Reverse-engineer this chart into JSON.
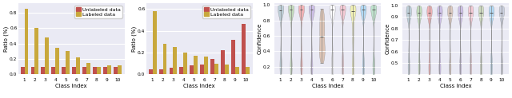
{
  "subplot_a": {
    "xlabel": "Class Index",
    "ylabel": "Ratio (%)",
    "unlabeled": [
      0.1,
      0.1,
      0.1,
      0.1,
      0.1,
      0.1,
      0.1,
      0.1,
      0.1,
      0.1
    ],
    "labeled": [
      0.85,
      0.6,
      0.48,
      0.35,
      0.3,
      0.22,
      0.15,
      0.1,
      0.12,
      0.12
    ],
    "ylim": [
      0,
      0.92
    ],
    "yticks": [
      0.0,
      0.2,
      0.4,
      0.6,
      0.8
    ]
  },
  "subplot_b": {
    "xlabel": "Class Index",
    "ylabel": "Ratio (%)",
    "unlabeled": [
      0.05,
      0.05,
      0.06,
      0.07,
      0.08,
      0.09,
      0.14,
      0.22,
      0.32,
      0.46
    ],
    "labeled": [
      0.58,
      0.28,
      0.25,
      0.2,
      0.17,
      0.16,
      0.1,
      0.09,
      0.07,
      0.07
    ],
    "ylim": [
      0,
      0.65
    ],
    "yticks": [
      0.0,
      0.2,
      0.4,
      0.6
    ]
  },
  "violin_colors_c": [
    "#aec6cf",
    "#b5d5a8",
    "#f4a0a0",
    "#c3b1e1",
    "#d9b8a0",
    "#ffffff",
    "#f9c0cb",
    "#f4f4a0",
    "#a0d4f4",
    "#b0e0c0"
  ],
  "violin_colors_d": [
    "#aec6cf",
    "#b5d5a8",
    "#f4a0a0",
    "#c3b1e1",
    "#d9c0b0",
    "#c3b1e1",
    "#f9c0cb",
    "#c8d8b0",
    "#a0d4f4",
    "#c0c8d8"
  ],
  "bar_color_unlabeled": "#c0504d",
  "bar_color_labeled": "#c8a83c",
  "bg_color": "#eaeaf4",
  "grid_color": "#ffffff",
  "legend_fontsize": 4.5,
  "tick_fontsize": 4.2,
  "label_fontsize": 5,
  "title_fontsize": 7
}
